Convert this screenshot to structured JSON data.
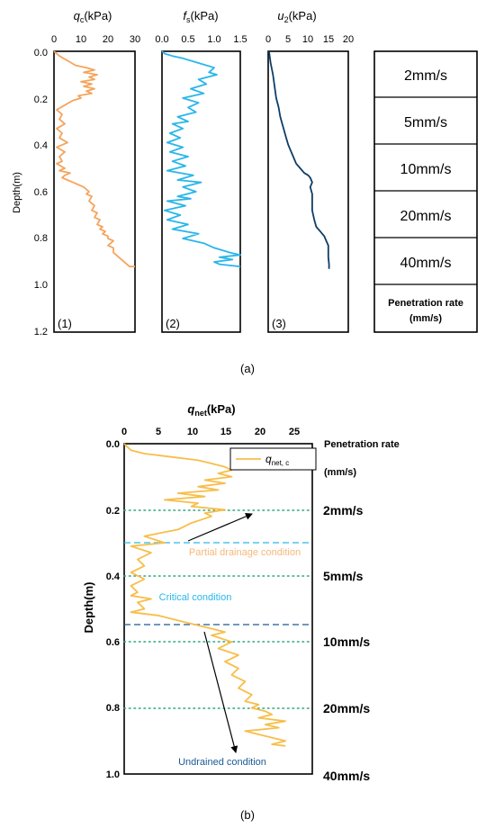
{
  "panel_a": {
    "caption": "(a)",
    "ylabel": "Depth(m)",
    "yticks": [
      "0.0",
      "0.2",
      "0.4",
      "0.6",
      "0.8",
      "1.0",
      "1.2"
    ],
    "subplots": [
      {
        "var": "q",
        "sub": "c",
        "unit": "(kPa)",
        "xticks": [
          "0",
          "10",
          "20",
          "30"
        ],
        "tag": "(1)"
      },
      {
        "var": "f",
        "sub": "s",
        "unit": "(kPa)",
        "xticks": [
          "0.0",
          "0.5",
          "1.0",
          "1.5"
        ],
        "tag": "(2)"
      },
      {
        "var": "u",
        "sub": "2",
        "unit": "(kPa)",
        "xticks": [
          "0",
          "5",
          "10",
          "15",
          "20"
        ],
        "tag": "(3)"
      }
    ],
    "rate_table": {
      "rows": [
        "2mm/s",
        "5mm/s",
        "10mm/s",
        "20mm/s",
        "40mm/s"
      ],
      "footer_line1": "Penetration rate",
      "footer_line2": "(mm/s)"
    }
  },
  "panel_b": {
    "caption": "(b)",
    "title_var": "q",
    "title_sub": "net",
    "title_unit": "(kPa)",
    "ylabel": "Depth(m)",
    "xticks": [
      "0",
      "5",
      "10",
      "15",
      "20",
      "25"
    ],
    "yticks": [
      "0.0",
      "0.2",
      "0.4",
      "0.6",
      "0.8",
      "1.0"
    ],
    "legend_var": "q",
    "legend_sub": "net, c",
    "side_title1": "Penetration rate",
    "side_title2": "(mm/s)",
    "rate_labels": [
      "2mm/s",
      "5mm/s",
      "10mm/s",
      "20mm/s",
      "40mm/s"
    ],
    "annotations": {
      "partial": "Partial drainage condition",
      "critical": "Critical condition",
      "undrained": "Undrained condition"
    }
  },
  "colors": {
    "qc": "#f5a45c",
    "fs": "#29b6ea",
    "u2": "#0e3d66",
    "qnet": "#f7be4a",
    "dotted": "#2aa87a",
    "dash_light": "#29b6ea",
    "dash_dark": "#1a5a96",
    "text_partial": "#f5b779",
    "text_critical": "#29b6ea",
    "text_undrained": "#1a5a96"
  },
  "chart_data": [
    {
      "type": "line",
      "name": "qc",
      "xlim": [
        0,
        30
      ],
      "ylim": [
        1.2,
        0.0
      ],
      "x": [
        0,
        1,
        2,
        5,
        8,
        12,
        15,
        11,
        16,
        13,
        15,
        10,
        14,
        11,
        15,
        12,
        14,
        9,
        10,
        7,
        4,
        1,
        3,
        2,
        4,
        1,
        3,
        2,
        5,
        1,
        4,
        2,
        3,
        1,
        4,
        2,
        6,
        4,
        3,
        5,
        7,
        9,
        11,
        13,
        12,
        14,
        13,
        15,
        14,
        16,
        15,
        17,
        16,
        18,
        17,
        19,
        18,
        20,
        20,
        22,
        21,
        20,
        22,
        22,
        25,
        28,
        30
      ],
      "y": [
        0.0,
        0.01,
        0.02,
        0.04,
        0.06,
        0.07,
        0.08,
        0.09,
        0.1,
        0.11,
        0.12,
        0.13,
        0.14,
        0.15,
        0.16,
        0.17,
        0.18,
        0.19,
        0.2,
        0.21,
        0.23,
        0.25,
        0.27,
        0.29,
        0.31,
        0.33,
        0.35,
        0.37,
        0.39,
        0.41,
        0.43,
        0.45,
        0.47,
        0.48,
        0.5,
        0.51,
        0.52,
        0.53,
        0.54,
        0.55,
        0.56,
        0.57,
        0.58,
        0.6,
        0.61,
        0.62,
        0.64,
        0.66,
        0.68,
        0.69,
        0.71,
        0.72,
        0.74,
        0.75,
        0.76,
        0.77,
        0.78,
        0.79,
        0.8,
        0.81,
        0.82,
        0.83,
        0.84,
        0.86,
        0.89,
        0.92,
        0.92
      ]
    },
    {
      "type": "line",
      "name": "fs",
      "xlim": [
        0,
        1.5
      ],
      "ylim": [
        1.2,
        0.0
      ],
      "x": [
        0,
        0.05,
        0.2,
        0.4,
        0.7,
        1.0,
        0.9,
        1.05,
        0.7,
        0.85,
        0.55,
        0.8,
        0.4,
        0.7,
        0.5,
        0.65,
        0.3,
        0.5,
        0.2,
        0.4,
        0.15,
        0.35,
        0.1,
        0.4,
        0.15,
        0.5,
        0.2,
        0.45,
        0.1,
        0.6,
        0.3,
        0.75,
        0.4,
        0.65,
        0.3,
        0.55,
        0.1,
        0.45,
        0.05,
        0.35,
        0.1,
        0.5,
        0.2,
        0.7,
        0.4,
        0.8,
        1.0,
        1.3,
        1.5,
        1.1,
        1.35,
        1.0,
        1.1,
        1.5
      ],
      "y": [
        0.0,
        0.01,
        0.02,
        0.03,
        0.05,
        0.07,
        0.09,
        0.1,
        0.12,
        0.14,
        0.16,
        0.18,
        0.2,
        0.22,
        0.24,
        0.26,
        0.28,
        0.3,
        0.31,
        0.33,
        0.35,
        0.37,
        0.39,
        0.41,
        0.43,
        0.45,
        0.47,
        0.49,
        0.51,
        0.53,
        0.55,
        0.56,
        0.58,
        0.6,
        0.62,
        0.63,
        0.64,
        0.66,
        0.68,
        0.7,
        0.72,
        0.74,
        0.76,
        0.78,
        0.8,
        0.82,
        0.84,
        0.86,
        0.87,
        0.88,
        0.89,
        0.9,
        0.91,
        0.92
      ]
    },
    {
      "type": "line",
      "name": "u2",
      "xlim": [
        0,
        20
      ],
      "ylim": [
        1.2,
        0.0
      ],
      "x": [
        0.2,
        0.6,
        1.2,
        1.6,
        2.0,
        2.6,
        3.0,
        3.5,
        4.0,
        4.5,
        5.0,
        5.5,
        6.0,
        6.5,
        7.0,
        8.0,
        9.0,
        10.0,
        10.5,
        11.0,
        10.5,
        11.0,
        11.0,
        11.0,
        11.5,
        12.0,
        13.0,
        14.0,
        14.5,
        15.0,
        15.0,
        15.0,
        15.2,
        15.2
      ],
      "y": [
        0.0,
        0.05,
        0.1,
        0.15,
        0.2,
        0.24,
        0.28,
        0.31,
        0.34,
        0.37,
        0.4,
        0.42,
        0.44,
        0.46,
        0.48,
        0.5,
        0.52,
        0.53,
        0.54,
        0.56,
        0.58,
        0.61,
        0.64,
        0.68,
        0.72,
        0.75,
        0.77,
        0.79,
        0.81,
        0.83,
        0.85,
        0.88,
        0.91,
        0.93
      ]
    },
    {
      "type": "line",
      "name": "q net, c",
      "xlim": [
        0,
        28
      ],
      "ylim": [
        1.0,
        0.0
      ],
      "x": [
        0,
        0.5,
        1,
        3,
        7,
        11,
        13,
        15,
        16,
        14,
        16,
        12,
        15,
        11,
        14,
        8,
        12,
        6,
        11,
        10,
        15,
        12,
        13,
        10,
        8,
        3,
        6,
        1,
        4,
        2,
        3,
        1,
        3,
        1,
        2,
        1,
        4,
        2,
        3,
        1,
        5,
        7,
        9,
        11,
        13,
        15,
        13,
        16,
        14,
        17,
        15,
        17,
        16,
        18,
        17,
        19,
        18,
        20,
        19,
        21,
        22,
        20,
        24,
        21,
        23,
        18,
        20,
        22,
        24,
        22,
        24
      ],
      "y": [
        0.0,
        0.01,
        0.02,
        0.03,
        0.04,
        0.05,
        0.06,
        0.07,
        0.08,
        0.09,
        0.1,
        0.11,
        0.12,
        0.13,
        0.14,
        0.15,
        0.16,
        0.17,
        0.18,
        0.19,
        0.2,
        0.21,
        0.22,
        0.24,
        0.26,
        0.28,
        0.3,
        0.31,
        0.33,
        0.35,
        0.37,
        0.39,
        0.41,
        0.43,
        0.45,
        0.46,
        0.47,
        0.48,
        0.5,
        0.51,
        0.52,
        0.53,
        0.54,
        0.55,
        0.56,
        0.57,
        0.58,
        0.6,
        0.62,
        0.64,
        0.66,
        0.68,
        0.7,
        0.72,
        0.74,
        0.76,
        0.78,
        0.79,
        0.8,
        0.81,
        0.82,
        0.83,
        0.84,
        0.85,
        0.86,
        0.87,
        0.88,
        0.89,
        0.9,
        0.91,
        0.915
      ]
    }
  ]
}
